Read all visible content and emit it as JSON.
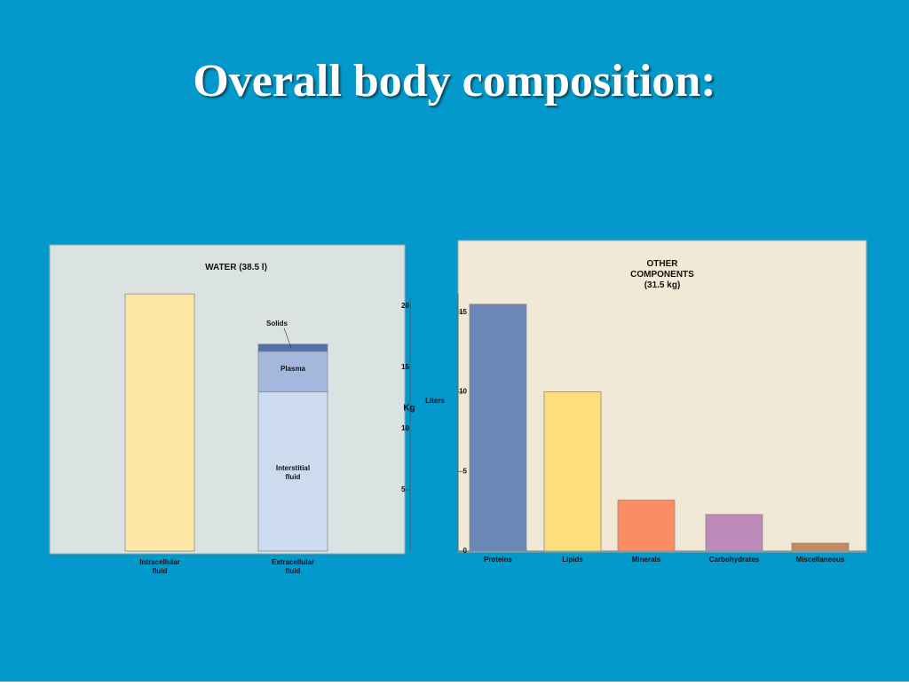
{
  "title": "Overall body composition:",
  "chart_data": [
    {
      "type": "stacked_bar",
      "title": "WATER (38.5 l)",
      "y_label": "Kg",
      "categories": [
        "Intracellular fluid",
        "Extracellular fluid"
      ],
      "series": [
        {
          "color": "#fde6a6",
          "values": [
            21,
            null
          ]
        },
        {
          "name": "Interstitial fluid",
          "color": "#ccdcee",
          "values": [
            null,
            13
          ]
        },
        {
          "name": "Plasma",
          "color": "#a3b8dc",
          "values": [
            null,
            3.3
          ]
        },
        {
          "name": "Solids",
          "color": "#4f6fae",
          "values": [
            null,
            0.6
          ]
        }
      ],
      "ylim": [
        0,
        25
      ],
      "yticks": [
        5,
        10,
        15,
        20
      ]
    },
    {
      "type": "bar",
      "title": "OTHER COMPONENTS (31.5 kg)",
      "y_label": "Liters",
      "categories": [
        "Proteins",
        "Lipids",
        "Minerals",
        "Carbohydrates",
        "Miscellaneous"
      ],
      "values": [
        15.5,
        10,
        3.2,
        2.3,
        0.5
      ],
      "colors": [
        "#6b87b8",
        "#fedd7c",
        "#fb8c64",
        "#bd8abb",
        "#c5895f"
      ],
      "ylim": [
        0,
        19.5
      ],
      "yticks": [
        0,
        5,
        10,
        15
      ]
    }
  ]
}
